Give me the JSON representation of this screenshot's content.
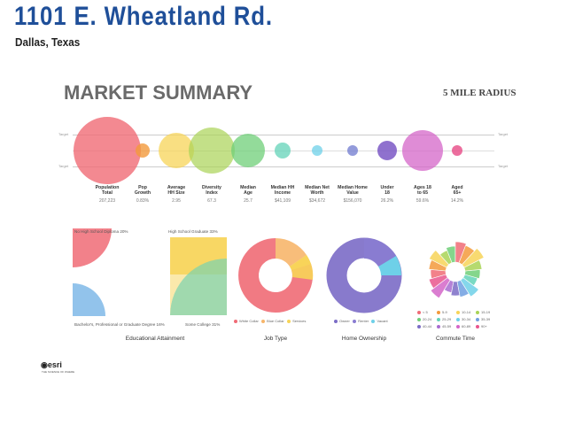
{
  "header": {
    "address": "1101 E. Wheatland Rd.",
    "city": "Dallas, Texas"
  },
  "summary": {
    "title": "MARKET SUMMARY",
    "radius": "5 MILE RADIUS",
    "target_label": "Target"
  },
  "metrics": [
    {
      "label": "Population\nTotal",
      "value": "207,223",
      "color": "#f06b76"
    },
    {
      "label": "Pop\nGrowth",
      "value": "0.83%",
      "color": "#f39a3c"
    },
    {
      "label": "Average\nHH Size",
      "value": "2.95",
      "color": "#f7d458"
    },
    {
      "label": "Diversity\nIndex",
      "value": "67.3",
      "color": "#a9d356"
    },
    {
      "label": "Median\nAge",
      "value": "25.7",
      "color": "#6fcf78"
    },
    {
      "label": "Median HH\nIncome",
      "value": "$41,109",
      "color": "#63d3b8"
    },
    {
      "label": "Median Net\nWorth",
      "value": "$34,672",
      "color": "#6ed0e8"
    },
    {
      "label": "Median Home\nValue",
      "value": "$156,070",
      "color": "#6f79cf"
    },
    {
      "label": "Under\n18",
      "value": "26.2%",
      "color": "#7b58c6"
    },
    {
      "label": "Ages 18\nto 65",
      "value": "59.6%",
      "color": "#d466c8"
    },
    {
      "label": "Aged\n65+",
      "value": "14.2%",
      "color": "#e9558d"
    }
  ],
  "education": {
    "title": "Educational Attainment",
    "no_hs": "No High School Diploma 20%",
    "hs_grad": "High School Graduate 33%",
    "bachelors": "Bachelor's, Professional or Graduate Degree 16%",
    "some_college": "Some College 31%",
    "colors": {
      "no_hs": "#f06b76",
      "hs_grad": "#f7d458",
      "bachelors": "#7fb8e8",
      "some_college": "#8fd2a0"
    }
  },
  "job_type": {
    "title": "Job Type",
    "legend": [
      "White Collar",
      "Blue Collar",
      "Services"
    ],
    "colors": [
      "#f06b76",
      "#f7b66b",
      "#f7d458"
    ]
  },
  "home_ownership": {
    "title": "Home Ownership",
    "legend": [
      "Owner",
      "Renter",
      "Vacant"
    ],
    "colors": [
      "#7b6cc6",
      "#7b6cc6",
      "#6ed0e8"
    ]
  },
  "commute": {
    "title": "Commute Time",
    "legend": [
      "< 5",
      "5-9",
      "10-14",
      "15-19",
      "20-24",
      "25-29",
      "30-34",
      "35-39",
      "40-44",
      "45-59",
      "60-89",
      "90+"
    ],
    "colors": [
      "#f06b76",
      "#f39a3c",
      "#f7d458",
      "#a9d356",
      "#6fcf78",
      "#63d3b8",
      "#6ed0e8",
      "#6f9fe0",
      "#7b6cc6",
      "#a86cd0",
      "#d466c8",
      "#e9558d"
    ]
  },
  "brand": {
    "logo": "esri",
    "tagline": "THE SCIENCE OF WHERE"
  }
}
